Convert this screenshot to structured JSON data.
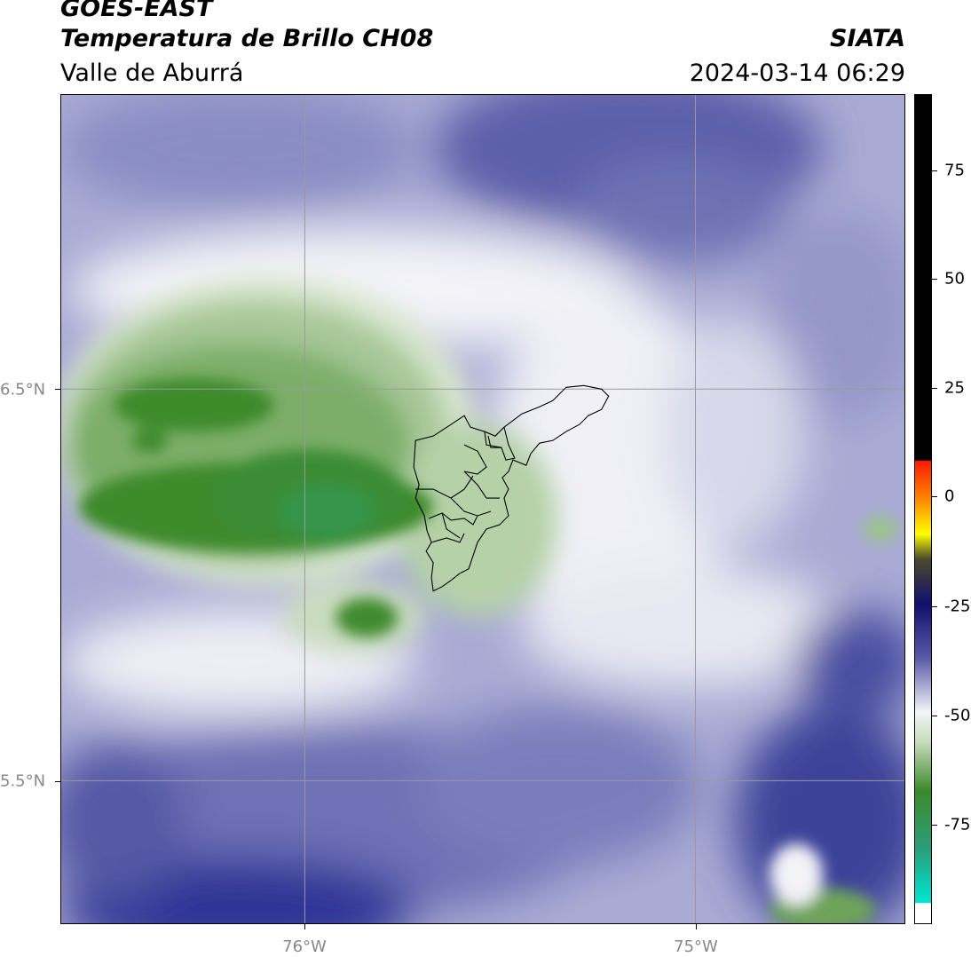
{
  "header": {
    "satellite": "GOES-EAST",
    "product": "Temperatura de Brillo CH08",
    "region": "Valle de Aburrá",
    "agency": "SIATA",
    "datetime": "2024-03-14 06:29"
  },
  "axes": {
    "lat_labels": [
      "6.5°N",
      "5.5°N"
    ],
    "lon_labels": [
      "76°W",
      "75°W"
    ]
  },
  "colorbar": {
    "ticks": [
      "75",
      "50",
      "25",
      "0",
      "-25",
      "-50",
      "-75"
    ],
    "colors": {
      "black": "#000000",
      "red": "#ff1a00",
      "yellow": "#ffff00",
      "navy": "#10106e",
      "purple": "#5a5aa8",
      "white": "#f4f4f8",
      "green": "#3b8a2a",
      "cyan": "#00e6d2"
    }
  },
  "map_colors": {
    "cold_blue": "#2f3596",
    "mid_purple": "#8f92c6",
    "light_lavender": "#c7c8e2",
    "white": "#f3f3f7",
    "pale_green": "#d8e6cf",
    "mid_green": "#8ab87a",
    "deep_green": "#3e8a2c"
  }
}
